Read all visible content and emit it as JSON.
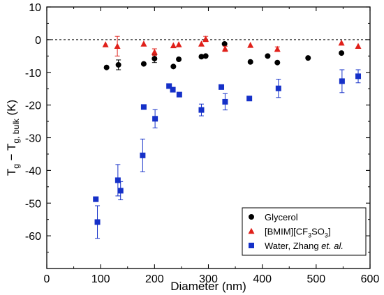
{
  "chart_data": {
    "type": "scatter",
    "xlabel": "Diameter (nm)",
    "ylabel": {
      "main": "T",
      "sub1": "g",
      "mid": " − T",
      "sub2": "g, bulk",
      "unit": " (K)"
    },
    "xlim": [
      0,
      600
    ],
    "ylim": [
      -70,
      10
    ],
    "xticks": [
      0,
      100,
      200,
      300,
      400,
      500,
      600
    ],
    "yticks": [
      10,
      0,
      -10,
      -20,
      -30,
      -40,
      -50,
      -60
    ],
    "reference_line": {
      "y": 0,
      "style": "dashed"
    },
    "grid": false,
    "legend_position": "bottom-right",
    "series": [
      {
        "name": "Glycerol",
        "legend_label": {
          "text": "Glycerol"
        },
        "marker": "circle",
        "color": "#000000",
        "points": [
          {
            "x": 111,
            "y": -8.5,
            "err": 0
          },
          {
            "x": 133,
            "y": -7.7,
            "err": 1.5
          },
          {
            "x": 180,
            "y": -7.4,
            "err": 0
          },
          {
            "x": 200,
            "y": -5.8,
            "err": 1.2
          },
          {
            "x": 235,
            "y": -8.2,
            "err": 0
          },
          {
            "x": 245,
            "y": -6.0,
            "err": 0
          },
          {
            "x": 287,
            "y": -5.2,
            "err": 0
          },
          {
            "x": 295,
            "y": -5.0,
            "err": 0
          },
          {
            "x": 330,
            "y": -1.3,
            "err": 0
          },
          {
            "x": 378,
            "y": -6.8,
            "err": 0
          },
          {
            "x": 410,
            "y": -5.0,
            "err": 0
          },
          {
            "x": 428,
            "y": -7.0,
            "err": 0
          },
          {
            "x": 485,
            "y": -5.6,
            "err": 0
          },
          {
            "x": 547,
            "y": -4.1,
            "err": 0
          }
        ]
      },
      {
        "name": "[BMIM][CF3SO3]",
        "legend_label": {
          "pre": "[BMIM][CF",
          "sub": "3",
          "post": "SO",
          "sub2": "3",
          "end": "]"
        },
        "marker": "triangle",
        "color": "#e0201a",
        "points": [
          {
            "x": 109,
            "y": -1.5,
            "err": 0
          },
          {
            "x": 131,
            "y": -2.0,
            "err": 3.0
          },
          {
            "x": 180,
            "y": -1.3,
            "err": 0
          },
          {
            "x": 200,
            "y": -3.8,
            "err": 1.0
          },
          {
            "x": 235,
            "y": -1.8,
            "err": 0
          },
          {
            "x": 245,
            "y": -1.5,
            "err": 0
          },
          {
            "x": 287,
            "y": -1.3,
            "err": 0
          },
          {
            "x": 295,
            "y": 0.2,
            "err": 0.8
          },
          {
            "x": 331,
            "y": -2.8,
            "err": 0.8
          },
          {
            "x": 378,
            "y": -1.7,
            "err": 0
          },
          {
            "x": 428,
            "y": -2.9,
            "err": 0.7
          },
          {
            "x": 547,
            "y": -1.0,
            "err": 0
          },
          {
            "x": 578,
            "y": -2.0,
            "err": 0
          }
        ]
      },
      {
        "name": "Water, Zhang et. al.",
        "legend_label": {
          "pre": "Water, Zhang ",
          "italic": "et. al.",
          "post": ""
        },
        "marker": "square",
        "color": "#1530c8",
        "points": [
          {
            "x": 91,
            "y": -48.8,
            "err": 0
          },
          {
            "x": 94,
            "y": -55.8,
            "err": 5.0
          },
          {
            "x": 132,
            "y": -43.0,
            "err": 4.8
          },
          {
            "x": 137,
            "y": -46.2,
            "err": 2.8
          },
          {
            "x": 180,
            "y": -20.6,
            "err": 0
          },
          {
            "x": 178,
            "y": -35.4,
            "err": 5.0
          },
          {
            "x": 201,
            "y": -24.2,
            "err": 2.8
          },
          {
            "x": 227,
            "y": -14.2,
            "err": 0
          },
          {
            "x": 234,
            "y": -15.3,
            "err": 0
          },
          {
            "x": 246,
            "y": -16.8,
            "err": 0
          },
          {
            "x": 287,
            "y": -21.5,
            "err": 1.8
          },
          {
            "x": 324,
            "y": -14.5,
            "err": 0
          },
          {
            "x": 331,
            "y": -19.0,
            "err": 2.5
          },
          {
            "x": 376,
            "y": -18.0,
            "err": 0
          },
          {
            "x": 430,
            "y": -14.9,
            "err": 2.8
          },
          {
            "x": 548,
            "y": -12.7,
            "err": 3.5
          },
          {
            "x": 578,
            "y": -11.2,
            "err": 2.0
          }
        ]
      }
    ]
  }
}
